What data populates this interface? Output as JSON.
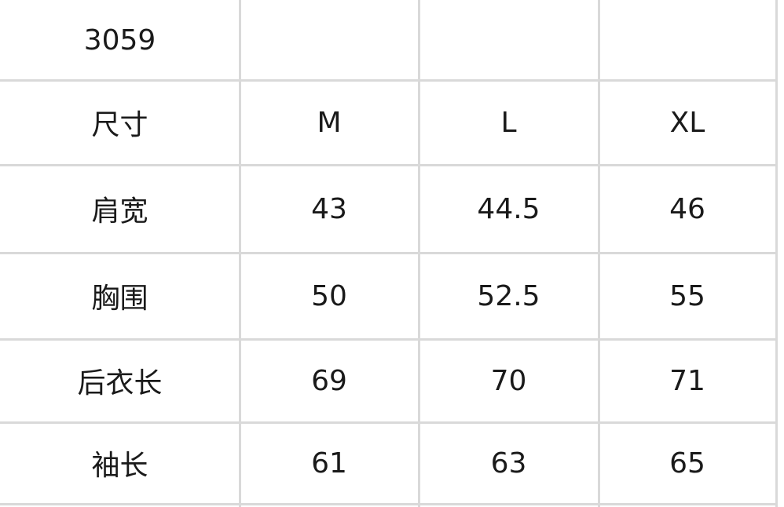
{
  "table": {
    "code": "3059",
    "rows": [
      [
        "尺寸",
        "M",
        "L",
        "XL"
      ],
      [
        "肩宽",
        "43",
        "44.5",
        "46"
      ],
      [
        "胸围",
        "50",
        "52.5",
        "55"
      ],
      [
        "后衣长",
        "69",
        "70",
        "71"
      ],
      [
        "袖长",
        "61",
        "63",
        "65"
      ]
    ]
  }
}
